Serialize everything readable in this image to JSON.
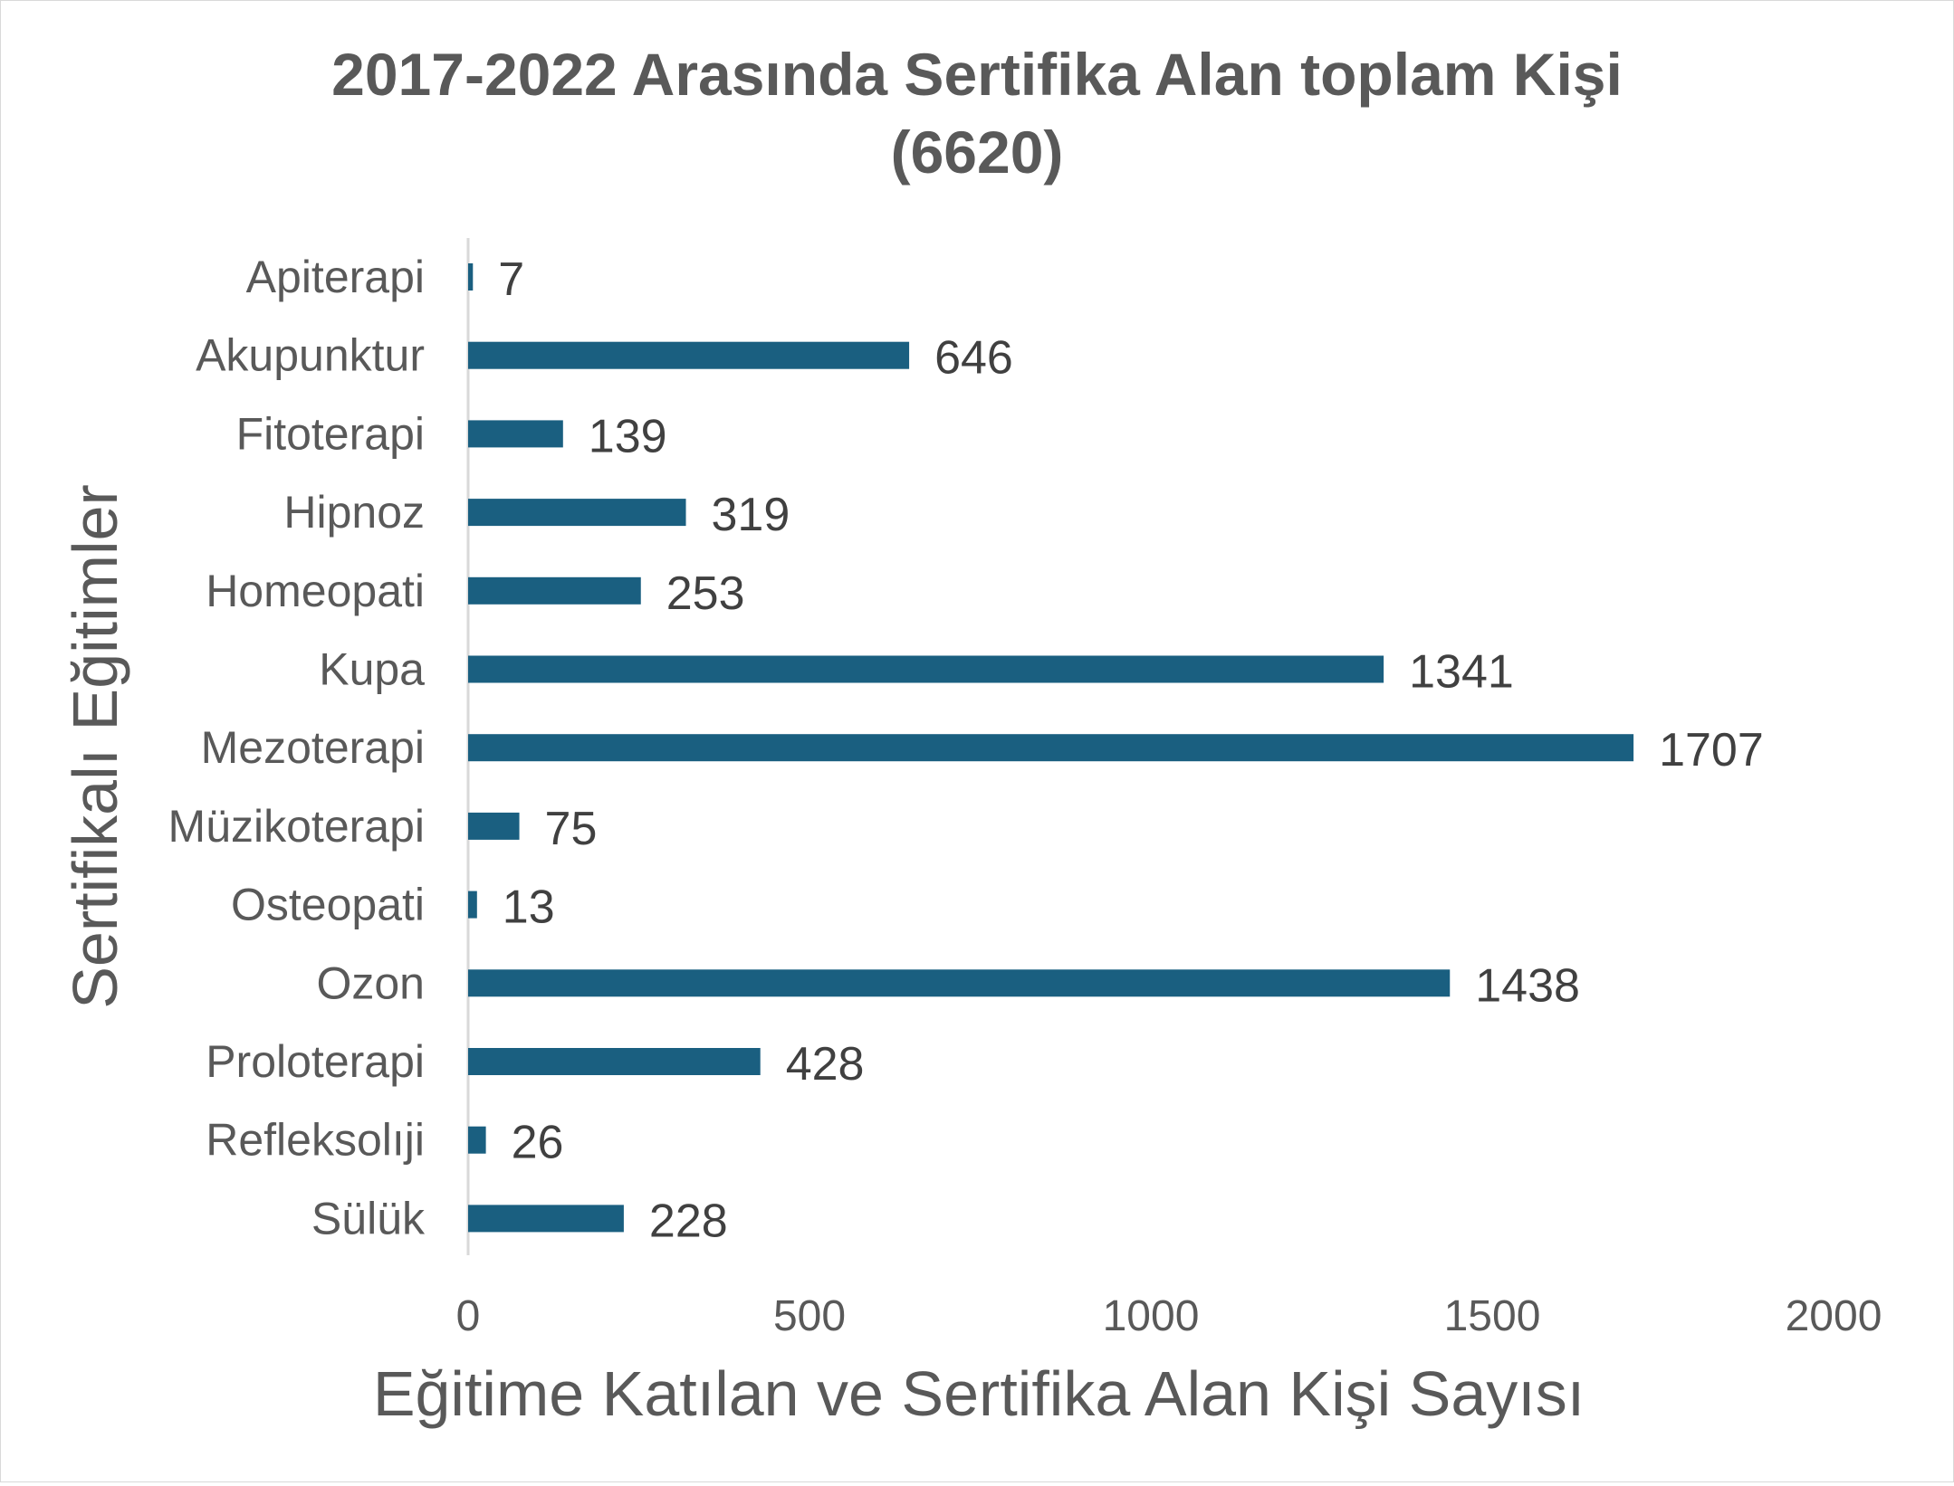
{
  "chart_data": {
    "type": "bar",
    "orientation": "horizontal",
    "title_lines": [
      "2017-2022 Arasında Sertifika Alan toplam Kişi",
      "(6620)"
    ],
    "xlabel": "Eğitime Katılan ve Sertifika Alan Kişi Sayısı",
    "ylabel": "Sertifikalı Eğitimler",
    "categories": [
      "Apiterapi",
      "Akupunktur",
      "Fitoterapi",
      "Hipnoz",
      "Homeopati",
      "Kupa",
      "Mezoterapi",
      "Müzikoterapi",
      "Osteopati",
      "Ozon",
      "Proloterapi",
      "Refleksolıji",
      "Sülük"
    ],
    "values": [
      7,
      646,
      139,
      319,
      253,
      1341,
      1707,
      75,
      13,
      1438,
      428,
      26,
      228
    ],
    "xlim": [
      0,
      2000
    ],
    "xticks": [
      "0",
      "500",
      "1000",
      "1500",
      "2000"
    ],
    "grid": false,
    "legend": "none",
    "colors": {
      "bar": "#1a5f80",
      "axis": "#d9d9d9",
      "text": "#595959",
      "value_text": "#404040"
    }
  }
}
